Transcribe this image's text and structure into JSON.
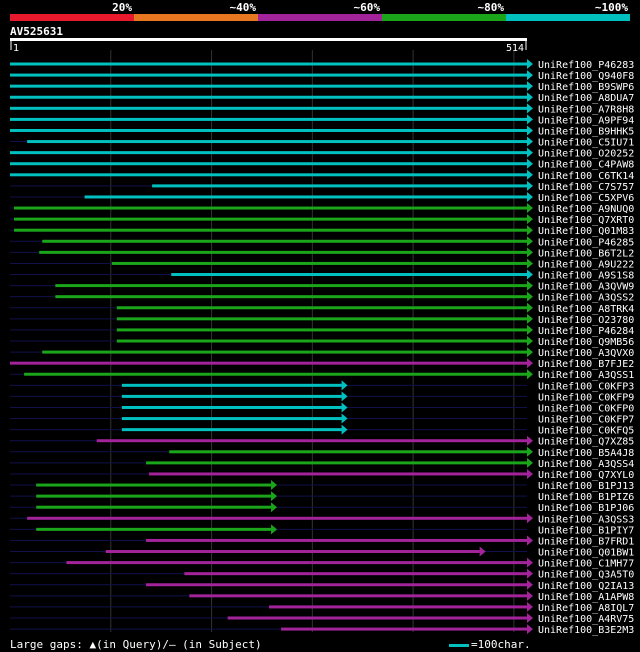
{
  "query": {
    "name": "AV525631",
    "start": "1",
    "end": "514",
    "length": 514
  },
  "legend": {
    "segments": [
      {
        "label": "20%",
        "color": "#E8192C"
      },
      {
        "label": "~40%",
        "color": "#E87722"
      },
      {
        "label": "~60%",
        "color": "#A2239A"
      },
      {
        "label": "~80%",
        "color": "#1AA51A"
      },
      {
        "label": "~100%",
        "color": "#00C0C0"
      }
    ]
  },
  "footer": {
    "gaps_label": "Large gaps: ▲(in Query)/— (in Subject)",
    "scale_label": "=100char."
  },
  "chart_data": {
    "type": "alignment",
    "x_range": [
      1,
      514
    ],
    "hits": [
      {
        "name": "UniRef100_P46283",
        "start": 1,
        "end": 514,
        "color": "cyan",
        "arrow": true
      },
      {
        "name": "UniRef100_Q940F8",
        "start": 1,
        "end": 514,
        "color": "cyan",
        "arrow": true
      },
      {
        "name": "UniRef100_B9SWP6",
        "start": 1,
        "end": 514,
        "color": "cyan",
        "arrow": true
      },
      {
        "name": "UniRef100_A8DUA7",
        "start": 1,
        "end": 514,
        "color": "cyan",
        "arrow": true
      },
      {
        "name": "UniRef100_A7R8H8",
        "start": 1,
        "end": 514,
        "color": "cyan",
        "arrow": true
      },
      {
        "name": "UniRef100_A9PF94",
        "start": 1,
        "end": 514,
        "color": "cyan",
        "arrow": true
      },
      {
        "name": "UniRef100_B9HHK5",
        "start": 1,
        "end": 514,
        "color": "cyan",
        "arrow": true
      },
      {
        "name": "UniRef100_C5IU71",
        "start": 18,
        "end": 514,
        "color": "cyan",
        "arrow": true
      },
      {
        "name": "UniRef100_O20252",
        "start": 1,
        "end": 514,
        "color": "cyan",
        "arrow": true
      },
      {
        "name": "UniRef100_C4PAW8",
        "start": 1,
        "end": 514,
        "color": "cyan",
        "arrow": true
      },
      {
        "name": "UniRef100_C6TK14",
        "start": 1,
        "end": 514,
        "color": "cyan",
        "arrow": true
      },
      {
        "name": "UniRef100_C7S757",
        "start": 142,
        "end": 514,
        "color": "cyan",
        "arrow": true
      },
      {
        "name": "UniRef100_C5XPV6",
        "start": 75,
        "end": 514,
        "color": "cyan",
        "arrow": true
      },
      {
        "name": "UniRef100_A9NUQ0",
        "start": 5,
        "end": 514,
        "color": "green",
        "arrow": true
      },
      {
        "name": "UniRef100_Q7XRT0",
        "start": 5,
        "end": 514,
        "color": "green",
        "arrow": true
      },
      {
        "name": "UniRef100_Q01M83",
        "start": 5,
        "end": 514,
        "color": "green",
        "arrow": true
      },
      {
        "name": "UniRef100_P46285",
        "start": 33,
        "end": 514,
        "color": "green",
        "arrow": true
      },
      {
        "name": "UniRef100_B6T2L2",
        "start": 30,
        "end": 514,
        "color": "green",
        "arrow": true
      },
      {
        "name": "UniRef100_A9U222",
        "start": 102,
        "end": 514,
        "color": "green",
        "arrow": true
      },
      {
        "name": "UniRef100_A9S1S8",
        "start": 161,
        "end": 514,
        "color": "cyan",
        "arrow": true
      },
      {
        "name": "UniRef100_A3QVW9",
        "start": 46,
        "end": 514,
        "color": "green",
        "arrow": true
      },
      {
        "name": "UniRef100_A3QSS2",
        "start": 46,
        "end": 514,
        "color": "green",
        "arrow": true
      },
      {
        "name": "UniRef100_A8TRK4",
        "start": 107,
        "end": 514,
        "color": "green",
        "arrow": true
      },
      {
        "name": "UniRef100_O23780",
        "start": 107,
        "end": 514,
        "color": "green",
        "arrow": true
      },
      {
        "name": "UniRef100_P46284",
        "start": 107,
        "end": 514,
        "color": "green",
        "arrow": true
      },
      {
        "name": "UniRef100_Q9MB56",
        "start": 107,
        "end": 514,
        "color": "green",
        "arrow": true
      },
      {
        "name": "UniRef100_A3QVX0",
        "start": 33,
        "end": 514,
        "color": "green",
        "arrow": true
      },
      {
        "name": "UniRef100_B7FJE2",
        "start": 1,
        "end": 514,
        "color": "magenta",
        "arrow": true
      },
      {
        "name": "UniRef100_A3QSS1",
        "start": 15,
        "end": 514,
        "color": "green",
        "arrow": true
      },
      {
        "name": "UniRef100_C0KFP3",
        "start": 112,
        "end": 330,
        "color": "cyan",
        "arrow": true
      },
      {
        "name": "UniRef100_C0KFP9",
        "start": 112,
        "end": 330,
        "color": "cyan",
        "arrow": true
      },
      {
        "name": "UniRef100_C0KFP0",
        "start": 112,
        "end": 330,
        "color": "cyan",
        "arrow": true
      },
      {
        "name": "UniRef100_C0KFP7",
        "start": 112,
        "end": 330,
        "color": "cyan",
        "arrow": true
      },
      {
        "name": "UniRef100_C0KFQ5",
        "start": 112,
        "end": 330,
        "color": "cyan",
        "arrow": true
      },
      {
        "name": "UniRef100_Q7XZ85",
        "start": 87,
        "end": 514,
        "color": "magenta",
        "arrow": true
      },
      {
        "name": "UniRef100_B5A4J8",
        "start": 159,
        "end": 514,
        "color": "green",
        "arrow": true
      },
      {
        "name": "UniRef100_A3QSS4",
        "start": 136,
        "end": 514,
        "color": "green",
        "arrow": true
      },
      {
        "name": "UniRef100_Q7XYL0",
        "start": 139,
        "end": 514,
        "color": "magenta",
        "arrow": true
      },
      {
        "name": "UniRef100_B1PJ13",
        "start": 27,
        "end": 260,
        "color": "green",
        "arrow": true
      },
      {
        "name": "UniRef100_B1PIZ6",
        "start": 27,
        "end": 260,
        "color": "green",
        "arrow": true
      },
      {
        "name": "UniRef100_B1PJ06",
        "start": 27,
        "end": 260,
        "color": "green",
        "arrow": true
      },
      {
        "name": "UniRef100_A3QSS3",
        "start": 18,
        "end": 514,
        "color": "magenta",
        "arrow": true
      },
      {
        "name": "UniRef100_B1PIY7",
        "start": 27,
        "end": 260,
        "color": "green",
        "arrow": true
      },
      {
        "name": "UniRef100_B7FRD1",
        "start": 136,
        "end": 514,
        "color": "magenta",
        "arrow": true
      },
      {
        "name": "UniRef100_Q01BW1",
        "start": 96,
        "end": 467,
        "color": "magenta",
        "arrow": true
      },
      {
        "name": "UniRef100_C1MH77",
        "start": 57,
        "end": 514,
        "color": "magenta",
        "arrow": true
      },
      {
        "name": "UniRef100_Q3A5T0",
        "start": 174,
        "end": 514,
        "color": "magenta",
        "arrow": true
      },
      {
        "name": "UniRef100_Q2IA13",
        "start": 136,
        "end": 514,
        "color": "magenta",
        "arrow": true
      },
      {
        "name": "UniRef100_A1APW8",
        "start": 179,
        "end": 514,
        "color": "magenta",
        "arrow": true
      },
      {
        "name": "UniRef100_A8IQL7",
        "start": 258,
        "end": 514,
        "color": "magenta",
        "arrow": true
      },
      {
        "name": "UniRef100_A4RV75",
        "start": 217,
        "end": 514,
        "color": "magenta",
        "arrow": true
      },
      {
        "name": "UniRef100_B3E2M3",
        "start": 270,
        "end": 514,
        "color": "magenta",
        "arrow": true
      }
    ]
  }
}
